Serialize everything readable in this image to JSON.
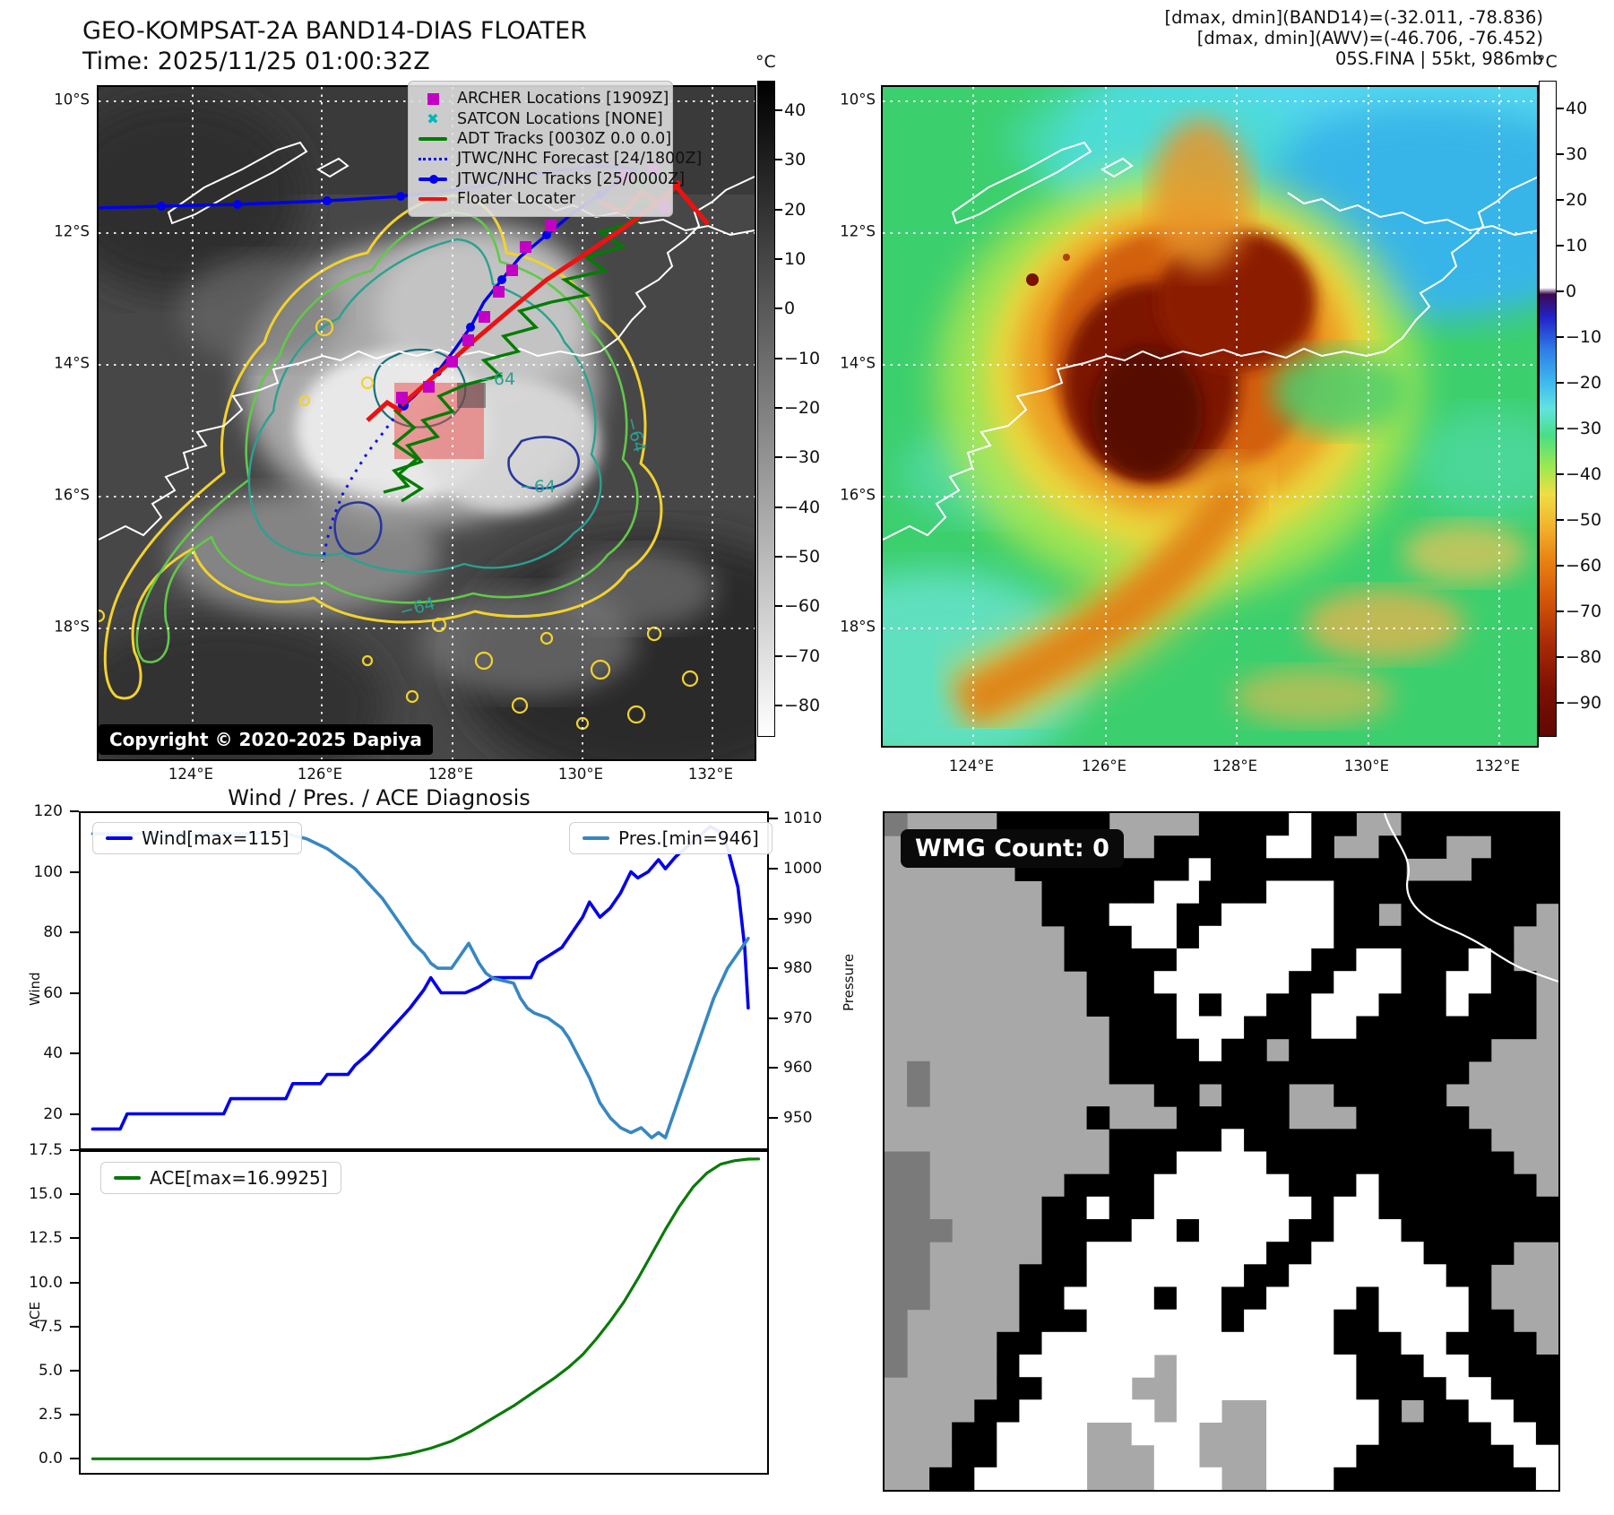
{
  "panel_ir": {
    "title_line1": "GEO-KOMPSAT-2A BAND14-DIAS FLOATER",
    "title_line2": "Time: 2025/11/25 01:00:32Z",
    "copyright": "Copyright © 2020-2025 Dapiya",
    "contour_label": "−64",
    "legend": [
      {
        "label": "ARCHER Locations [1909Z]",
        "style": "square",
        "color": "#c300c3"
      },
      {
        "label": "SATCON Locations [NONE]",
        "style": "x",
        "color": "#00b8b8"
      },
      {
        "label": "ADT Tracks [0030Z 0.0 0.0]",
        "style": "line",
        "color": "#007d00"
      },
      {
        "label": "JTWC/NHC Forecast [24/1800Z]",
        "style": "dotted",
        "color": "#0000ee"
      },
      {
        "label": "JTWC/NHC Tracks [25/0000Z]",
        "style": "linedot",
        "color": "#0000ee"
      },
      {
        "label": "Floater Locater",
        "style": "line",
        "color": "#ee1111"
      }
    ],
    "colorbar": {
      "unit": "°C",
      "vmax": 46,
      "vmin": -86,
      "ticks": [
        40,
        30,
        20,
        10,
        0,
        -10,
        -20,
        -30,
        -40,
        -50,
        -60,
        -70,
        -80
      ],
      "stops": [
        [
          0,
          "#000000"
        ],
        [
          100,
          "#ffffff"
        ]
      ]
    },
    "lat_labels": [
      "10°S",
      "12°S",
      "14°S",
      "16°S",
      "18°S"
    ],
    "lon_labels": [
      "124°E",
      "126°E",
      "128°E",
      "130°E",
      "132°E"
    ]
  },
  "panel_awv": {
    "header_line1": "[dmax, dmin](BAND14)=(-32.011, -78.836)",
    "header_line2": "[dmax, dmin](AWV)=(-46.706, -76.452)",
    "header_line3": "05S.FINA | 55kt, 986mb",
    "colorbar": {
      "unit": "°C",
      "vmax": 46,
      "vmin": -97,
      "ticks": [
        40,
        30,
        20,
        10,
        0,
        -10,
        -20,
        -30,
        -40,
        -50,
        -60,
        -70,
        -80,
        -90
      ],
      "stops": [
        [
          0,
          "#ffffff"
        ],
        [
          31.5,
          "#ffffff"
        ],
        [
          32.5,
          "#3c0a50"
        ],
        [
          36,
          "#2222c8"
        ],
        [
          41,
          "#2f7de6"
        ],
        [
          46,
          "#3fb9ef"
        ],
        [
          50,
          "#62e3df"
        ],
        [
          54,
          "#47df85"
        ],
        [
          59,
          "#9fe84f"
        ],
        [
          63,
          "#eede45"
        ],
        [
          68,
          "#f2b32c"
        ],
        [
          73,
          "#e88414"
        ],
        [
          79,
          "#d55708"
        ],
        [
          86,
          "#a82a06"
        ],
        [
          93,
          "#7c1003"
        ],
        [
          100,
          "#600800"
        ]
      ]
    },
    "lat_labels": [
      "10°S",
      "12°S",
      "14°S",
      "16°S",
      "18°S"
    ],
    "lon_labels": [
      "124°E",
      "126°E",
      "128°E",
      "130°E",
      "132°E"
    ]
  },
  "charts": {
    "title": "Wind / Pres. / ACE Diagnosis",
    "wind_legend": "Wind[max=115]",
    "pres_legend": "Pres.[min=946]",
    "ace_legend": "ACE[max=16.9925]",
    "wind_axis_label": "Wind",
    "pres_axis_label": "Pressure",
    "ace_axis_label": "ACE"
  },
  "panel_wmg": {
    "label": "WMG Count: 0",
    "palette": {
      "g": "#a8a8a8",
      "d": "#7a7a7a",
      "k": "#000000",
      "w": "#ffffff"
    },
    "grid_rows": [
      "dggggkkkkkggggkkkkwkkggkkkkkkk",
      "gggggkkkkkggkkkkkwwkggkkkggkkk",
      "ggggggkkkkkkkkwkkkkkkkkkgggkkkk",
      "gggggggkkkkkwwkkkwwwkkkkkkkkkk",
      "gggggggkkkwwwkkwwwwwkkgkkkkkkg",
      "ggggggggkkkwwkwwwwwwkkkkkkkkgg",
      "ggggggggkkkkkwwwwwwkkwwkkkwkgg",
      "gggggggggkkkwwwwwwkkwwwkkwwkkg",
      "gggggggggkkkkwkwwkkwwwkkkwkkkg",
      "ggggggggggkkkwwwkkkwwkkkkkkkkg",
      "ggggggggggkkkkwkkgkkkkkkkkkggg",
      "gdggggggggkkkkkkkkkkkkkkkkgggg",
      "gdggggggggggkkgkkkggkkkkkggggg",
      "gggggggggkgggkkkkkgggkkkkkgggg",
      "ggggggggggkkkkkwkkkkkkkkkkkggg",
      "ddggggggggkkkwwwwkkkkkkkkkkkgg",
      "ddggggggkkkkwwwwwwkkkwkkkkkkkg",
      "ddgggggkkwkkwwwwwwwkwwkkkkkkkk",
      "dddggggkkkkwwkwwwwkkwwwkkkkkkk",
      "ddgggggkkwwwwwwwwkkwwwwwkkkkgg",
      "ddggggkkkwwwwwwwkkwwwwwwwkkggg",
      "ddggggkkwwwwkwwkkwwwwkwwwwkggg",
      "dgggggkkkwwwwwwkwwwwkkwwwwkkgg",
      "dggggkkwwwwwwwwwwwwwkkkwwkkkkg",
      "dggggkwwwwwwgwwwwwwwwkkkwwkkkk",
      "gggggkkwwwwggwwwwwwwwkkkkwwkkk",
      "ggggkkwwwwwwgwwggwwwwwkgkkwwkk",
      "gggkkwwwwggwwwgggwwwwwkkkkkwwk",
      "gggkkwwwwgggwwgggwwwwkkkkkkkww",
      "ggkkwwwwwgggwwwggwwwkkkkkkkkkw"
    ]
  },
  "chart_data": [
    {
      "type": "line",
      "title": "Wind / Pres. / ACE Diagnosis",
      "xlim": [
        0,
        100
      ],
      "grid": false,
      "legend_position": "top-left and top-right inside",
      "series": [
        {
          "name": "Wind[max=115]",
          "color": "#0000ee",
          "width": 3.6,
          "axis": "left",
          "ylabel": "Wind",
          "ylim": [
            8,
            120
          ],
          "yticks": [
            20,
            40,
            60,
            80,
            100,
            120
          ],
          "tick_decimals": 0,
          "points": [
            [
              2,
              15
            ],
            [
              6,
              15
            ],
            [
              7,
              20
            ],
            [
              21,
              20
            ],
            [
              22,
              25
            ],
            [
              30,
              25
            ],
            [
              31,
              30
            ],
            [
              35,
              30
            ],
            [
              36,
              33
            ],
            [
              39,
              33
            ],
            [
              40,
              36
            ],
            [
              42,
              40
            ],
            [
              44,
              45
            ],
            [
              46,
              50
            ],
            [
              48,
              55
            ],
            [
              50,
              61
            ],
            [
              51,
              65
            ],
            [
              52.5,
              60
            ],
            [
              56,
              60
            ],
            [
              58,
              62
            ],
            [
              60,
              65
            ],
            [
              65.5,
              65
            ],
            [
              66.5,
              70
            ],
            [
              70,
              75
            ],
            [
              71.5,
              80
            ],
            [
              73,
              85
            ],
            [
              74,
              90
            ],
            [
              75.5,
              85
            ],
            [
              77,
              88
            ],
            [
              78.5,
              93
            ],
            [
              80,
              100
            ],
            [
              81,
              98
            ],
            [
              82.5,
              100
            ],
            [
              84,
              104
            ],
            [
              85,
              101
            ],
            [
              86.5,
              105
            ],
            [
              88,
              108
            ],
            [
              89,
              110
            ],
            [
              90.5,
              113
            ],
            [
              91.5,
              115
            ],
            [
              93,
              113
            ],
            [
              94,
              108
            ],
            [
              95.5,
              95
            ],
            [
              96.5,
              75
            ],
            [
              97,
              55
            ]
          ]
        },
        {
          "name": "Pres.[min=946]",
          "color": "#3787c0",
          "width": 3.6,
          "axis": "right",
          "ylabel": "Pressure",
          "ylim": [
            943.5,
            1011.5
          ],
          "yticks": [
            950,
            960,
            970,
            980,
            990,
            1000,
            1010
          ],
          "tick_decimals": 0,
          "points": [
            [
              2,
              1007
            ],
            [
              30,
              1007
            ],
            [
              33,
              1006
            ],
            [
              36,
              1004
            ],
            [
              38,
              1002
            ],
            [
              40,
              1000
            ],
            [
              42,
              997
            ],
            [
              44,
              994
            ],
            [
              45.5,
              991
            ],
            [
              47,
              988
            ],
            [
              48.5,
              985
            ],
            [
              50,
              983
            ],
            [
              51,
              981
            ],
            [
              52,
              980
            ],
            [
              54,
              980
            ],
            [
              55,
              982
            ],
            [
              56.5,
              985
            ],
            [
              58,
              981
            ],
            [
              59,
              979
            ],
            [
              60,
              978
            ],
            [
              63,
              977
            ],
            [
              64,
              974
            ],
            [
              65,
              972
            ],
            [
              66,
              971
            ],
            [
              68,
              970
            ],
            [
              69,
              969
            ],
            [
              70,
              968
            ],
            [
              71,
              966
            ],
            [
              72.5,
              962
            ],
            [
              74,
              958
            ],
            [
              75.5,
              953
            ],
            [
              77,
              950
            ],
            [
              78.5,
              948
            ],
            [
              80,
              947
            ],
            [
              81.5,
              948
            ],
            [
              83,
              946
            ],
            [
              84,
              947
            ],
            [
              85,
              946
            ],
            [
              86,
              950
            ],
            [
              88,
              958
            ],
            [
              90,
              966
            ],
            [
              92,
              974
            ],
            [
              94,
              980
            ],
            [
              96,
              984
            ],
            [
              97,
              986
            ]
          ]
        }
      ]
    },
    {
      "type": "line",
      "xlim": [
        0,
        100
      ],
      "grid": false,
      "series": [
        {
          "name": "ACE[max=16.9925]",
          "color": "#0a7a0a",
          "width": 3.2,
          "axis": "left",
          "ylabel": "ACE",
          "ylim": [
            -0.9,
            17.5
          ],
          "yticks": [
            0.0,
            2.5,
            5.0,
            7.5,
            10.0,
            12.5,
            15.0,
            17.5
          ],
          "tick_decimals": 1,
          "points": [
            [
              2,
              0
            ],
            [
              42,
              0
            ],
            [
              45,
              0.1
            ],
            [
              48,
              0.3
            ],
            [
              51,
              0.6
            ],
            [
              54,
              1.0
            ],
            [
              57,
              1.6
            ],
            [
              60,
              2.3
            ],
            [
              63,
              3.0
            ],
            [
              66,
              3.8
            ],
            [
              69,
              4.6
            ],
            [
              71,
              5.2
            ],
            [
              73,
              5.9
            ],
            [
              75,
              6.8
            ],
            [
              77,
              7.8
            ],
            [
              79,
              8.9
            ],
            [
              81,
              10.2
            ],
            [
              83,
              11.6
            ],
            [
              85,
              13.0
            ],
            [
              87,
              14.3
            ],
            [
              89,
              15.4
            ],
            [
              91,
              16.2
            ],
            [
              93,
              16.7
            ],
            [
              95,
              16.9
            ],
            [
              97,
              16.99
            ],
            [
              98.5,
              17.0
            ]
          ]
        }
      ]
    }
  ]
}
